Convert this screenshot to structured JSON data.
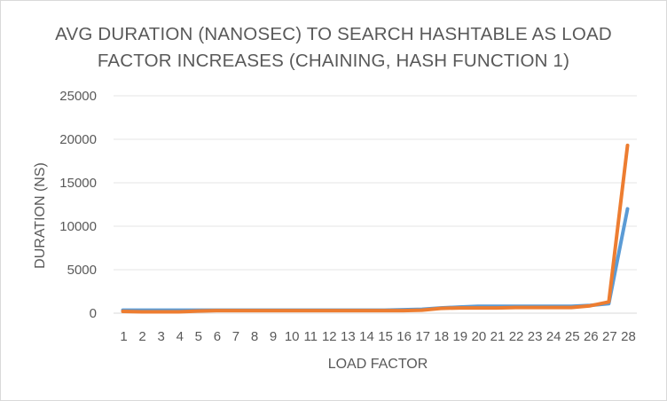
{
  "chart_data": {
    "type": "line",
    "title_line1": "AVG DURATION (NANOSEC) TO SEARCH HASHTABLE AS LOAD",
    "title_line2": "FACTOR INCREASES (CHAINING, HASH FUNCTION 1)",
    "xlabel": "LOAD FACTOR",
    "ylabel": "DURATION (NS)",
    "ylim": [
      0,
      25000
    ],
    "yticks": [
      "0",
      "5000",
      "10000",
      "15000",
      "20000",
      "25000"
    ],
    "categories": [
      "1",
      "2",
      "3",
      "4",
      "5",
      "6",
      "7",
      "8",
      "9",
      "10",
      "11",
      "12",
      "13",
      "14",
      "15",
      "16",
      "17",
      "18",
      "19",
      "20",
      "21",
      "22",
      "23",
      "24",
      "25",
      "26",
      "27",
      "28"
    ],
    "grid": true,
    "legend": "none",
    "series": [
      {
        "color": "#5B9BD5",
        "values": [
          350,
          350,
          350,
          350,
          350,
          350,
          350,
          350,
          350,
          350,
          350,
          350,
          350,
          350,
          350,
          400,
          450,
          600,
          700,
          800,
          800,
          800,
          800,
          800,
          800,
          900,
          1100,
          12000
        ]
      },
      {
        "color": "#ED7D31",
        "values": [
          200,
          150,
          150,
          150,
          250,
          300,
          300,
          300,
          300,
          300,
          300,
          300,
          300,
          300,
          300,
          300,
          350,
          550,
          600,
          600,
          600,
          650,
          650,
          650,
          650,
          850,
          1300,
          19300
        ]
      }
    ]
  }
}
